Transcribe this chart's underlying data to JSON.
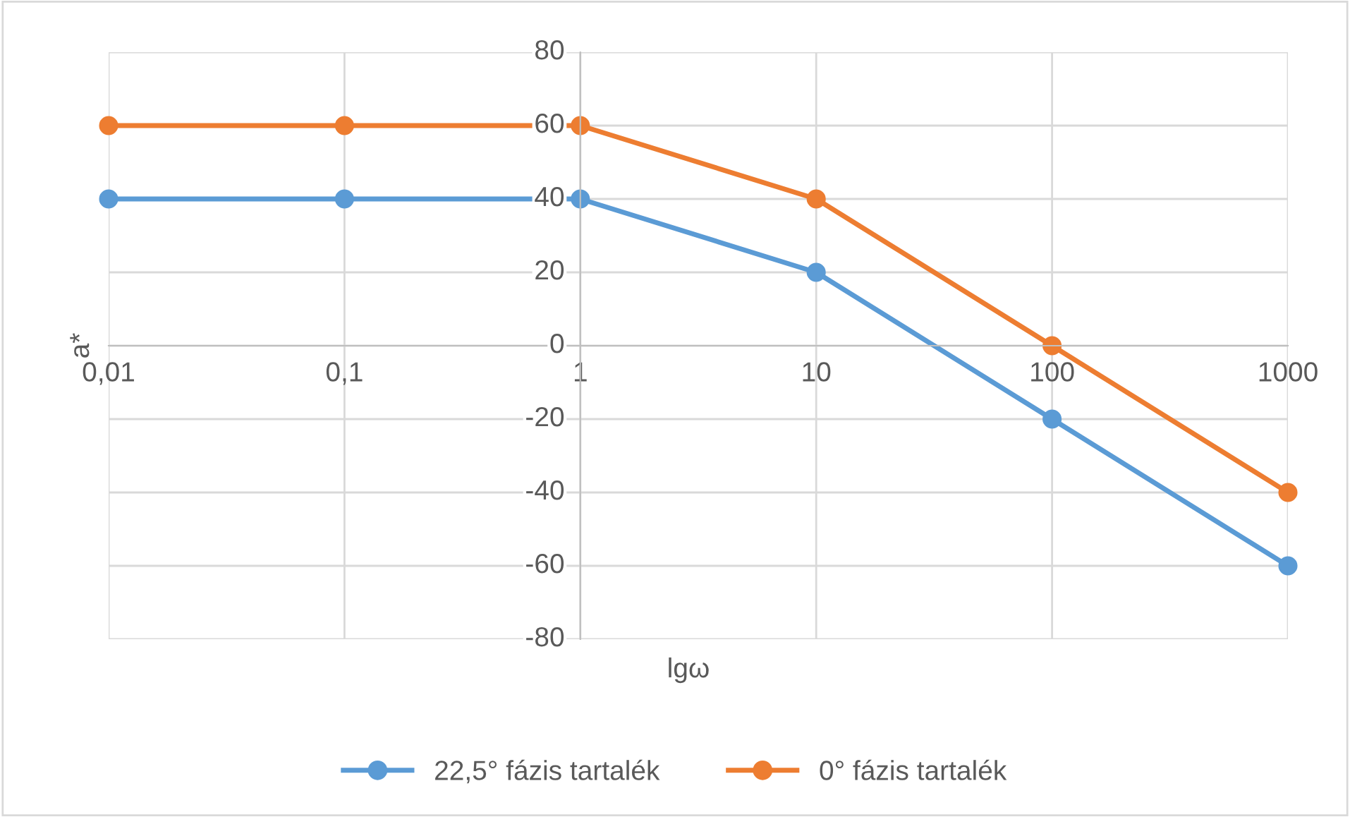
{
  "chart_data": {
    "type": "line",
    "xlabel": "lgω",
    "ylabel": "a*",
    "log": "x",
    "x": [
      0.01,
      0.1,
      1,
      10,
      100,
      1000
    ],
    "series": [
      {
        "name": "22,5° fázis tartalék",
        "color": "#5b9bd5",
        "values": [
          40,
          40,
          40,
          20,
          -20,
          -60
        ]
      },
      {
        "name": "0° fázis tartalék",
        "color": "#ed7d31",
        "values": [
          60,
          60,
          60,
          40,
          0,
          -40
        ]
      }
    ],
    "xlim": [
      0.01,
      1000
    ],
    "xticks": [
      {
        "value": 0.01,
        "label": "0,01"
      },
      {
        "value": 0.1,
        "label": "0,1"
      },
      1,
      10,
      100,
      1000
    ],
    "ylim": [
      -80,
      80
    ],
    "yticks": [
      -80,
      -60,
      -40,
      -20,
      0,
      20,
      40,
      60,
      80
    ],
    "grid": true,
    "legend": "bottom",
    "marker": "circle",
    "line_style": "solid"
  }
}
